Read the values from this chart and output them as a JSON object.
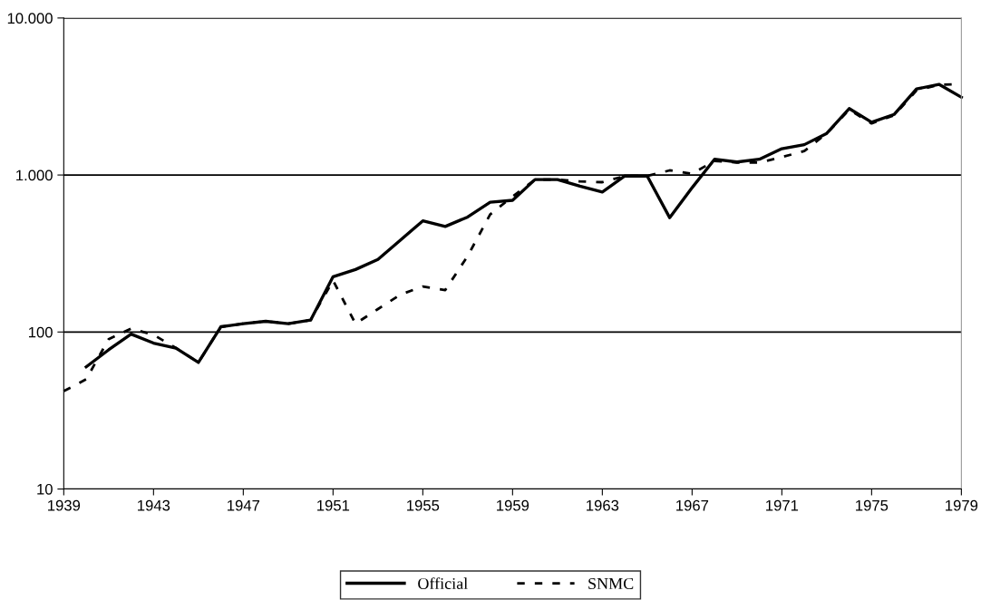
{
  "chart_data": {
    "type": "line",
    "log": "y",
    "grid": "y",
    "legend": "bottom",
    "marker": "none",
    "xlim": [
      1939,
      1979
    ],
    "xticks": [
      1939,
      1943,
      1947,
      1951,
      1955,
      1959,
      1963,
      1967,
      1971,
      1975,
      1979
    ],
    "ylim": [
      10,
      10000
    ],
    "yticks": [
      10,
      100,
      {
        "value": 1000,
        "label": "1.000"
      },
      {
        "value": 10000,
        "label": "10.000"
      }
    ],
    "series": [
      {
        "name": "Official",
        "color": "#000000",
        "line_style": "solid",
        "x": [
          1940,
          1941,
          1942,
          1943,
          1944,
          1945,
          1946,
          1947,
          1948,
          1949,
          1950,
          1951,
          1952,
          1953,
          1954,
          1955,
          1956,
          1957,
          1958,
          1959,
          1960,
          1961,
          1962,
          1963,
          1964,
          1965,
          1966,
          1967,
          1968,
          1969,
          1970,
          1971,
          1972,
          1973,
          1974,
          1975,
          1976,
          1977,
          1978,
          1979
        ],
        "values": [
          60,
          77,
          97,
          85,
          79,
          64,
          108,
          113,
          117,
          113,
          119,
          225,
          250,
          290,
          385,
          510,
          470,
          540,
          670,
          690,
          935,
          935,
          850,
          780,
          985,
          985,
          535,
          830,
          1260,
          1210,
          1260,
          1470,
          1560,
          1840,
          2650,
          2170,
          2430,
          3530,
          3780,
          3130
        ]
      },
      {
        "name": "SNMC",
        "color": "#000000",
        "line_style": "dashed",
        "x": [
          1939,
          1940,
          1941,
          1942,
          1943,
          1944,
          1945,
          1946,
          1947,
          1948,
          1949,
          1950,
          1951,
          1952,
          1953,
          1954,
          1955,
          1956,
          1957,
          1958,
          1959,
          1960,
          1961,
          1962,
          1963,
          1964,
          1965,
          1966,
          1967,
          1968,
          1969,
          1970,
          1971,
          1972,
          1973,
          1974,
          1975,
          1976,
          1977,
          1978,
          1979
        ],
        "values": [
          42,
          50,
          90,
          105,
          96,
          79,
          64,
          108,
          113,
          117,
          113,
          119,
          213,
          113,
          140,
          173,
          195,
          185,
          305,
          560,
          730,
          935,
          935,
          910,
          900,
          985,
          985,
          1070,
          1020,
          1230,
          1200,
          1200,
          1300,
          1420,
          1840,
          2600,
          2130,
          2400,
          3450,
          3750,
          3800
        ]
      }
    ]
  }
}
